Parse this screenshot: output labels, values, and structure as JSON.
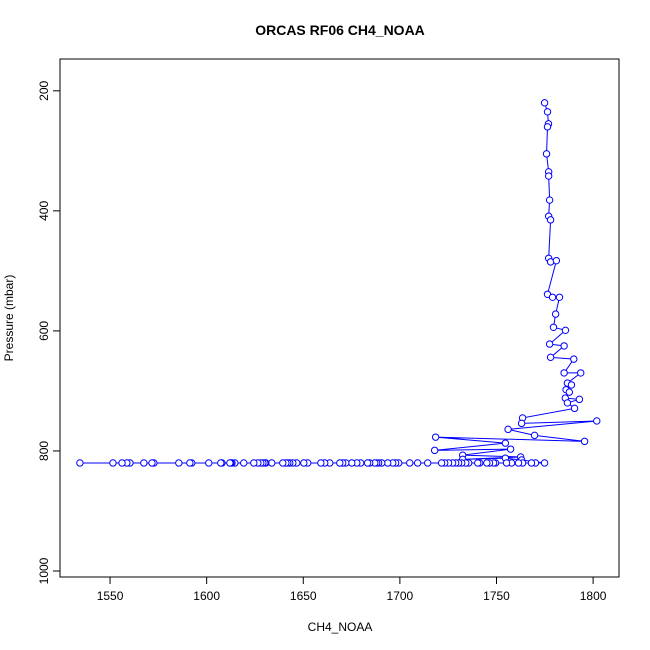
{
  "chart_data": {
    "type": "scatter",
    "title": "ORCAS RF06 CH4_NOAA",
    "xlabel": "CH4_NOAA",
    "ylabel": "Pressure (mbar)",
    "color": "#0000ff",
    "lines": true,
    "y_reversed": true,
    "xlim": [
      1524.1,
      1813.4
    ],
    "ylim": [
      147,
      1010
    ],
    "xticks": [
      1550,
      1600,
      1650,
      1700,
      1750,
      1800
    ],
    "yticks": [
      200,
      400,
      600,
      800,
      1000
    ],
    "x": [
      1774.9,
      1776.4,
      1776.9,
      1776.4,
      1775.9,
      1777,
      1777,
      1777.5,
      1777,
      1778,
      1777,
      1778,
      1781,
      1776.4,
      1779,
      1782.6,
      1780.6,
      1779.5,
      1785.7,
      1777.5,
      1785,
      1778,
      1790,
      1785,
      1793.6,
      1786.7,
      1788.8,
      1786,
      1787.7,
      1785.6,
      1792.9,
      1786.7,
      1790.4,
      1763.5,
      1763,
      1801.9,
      1756,
      1769.7,
      1795.6,
      1718.5,
      1754.6,
      1718,
      1757.3,
      1732.5,
      1762.5,
      1732.5,
      1754.6,
      1763,
      1774.9,
      1770.2,
      1768.1,
      1763.5,
      1761.4,
      1757.8,
      1755.2,
      1749.5,
      1748.5,
      1746.4,
      1745,
      1741.3,
      1740.3,
      1735.6,
      1734.1,
      1732,
      1730.4,
      1728.9,
      1727.3,
      1725.2,
      1723.2,
      1721.6,
      1714.4,
      1709.2,
      1705.1,
      1699.4,
      1697.8,
      1696.3,
      1693.7,
      1690.6,
      1689,
      1688,
      1687,
      1684.4,
      1683.3,
      1679.7,
      1677.7,
      1675.1,
      1672,
      1670.4,
      1668.9,
      1663.7,
      1661.1,
      1659.1,
      1652.3,
      1650.3,
      1646.6,
      1644.6,
      1643,
      1642,
      1641,
      1639.4,
      1633.7,
      1630.6,
      1630.1,
      1629.1,
      1628,
      1626.5,
      1624.4,
      1619.2,
      1614.6,
      1613.1,
      1612.5,
      1612,
      1607.9,
      1607.3,
      1601.1,
      1592.3,
      1591.3,
      1585.6,
      1572.7,
      1571.7,
      1567.5,
      1560.3,
      1558.7,
      1556.2,
      1551.5,
      1534.4
    ],
    "y": [
      220,
      235,
      255,
      260,
      305,
      335,
      342,
      382,
      409,
      415,
      479,
      485,
      483,
      539,
      544,
      544,
      572,
      594,
      599,
      622,
      625,
      644,
      647,
      670,
      670,
      687,
      690,
      698,
      702,
      712,
      714,
      720,
      729,
      745,
      754,
      750,
      764,
      774,
      784,
      777,
      787,
      799,
      797,
      807,
      810,
      814,
      812,
      815,
      820,
      820,
      820,
      820,
      820,
      820,
      820,
      820,
      820,
      820,
      820,
      820,
      820,
      820,
      820,
      820,
      820,
      820,
      820,
      820,
      820,
      820,
      820,
      820,
      820,
      820,
      820,
      820,
      820,
      820,
      820,
      820,
      820,
      820,
      820,
      820,
      820,
      820,
      820,
      820,
      820,
      820,
      820,
      820,
      820,
      820,
      820,
      820,
      820,
      820,
      820,
      820,
      820,
      820,
      820,
      820,
      820,
      820,
      820,
      820,
      820,
      820,
      820,
      820,
      820,
      820,
      820,
      820,
      820,
      820,
      820,
      820,
      820,
      820,
      820,
      820,
      820,
      820
    ]
  }
}
